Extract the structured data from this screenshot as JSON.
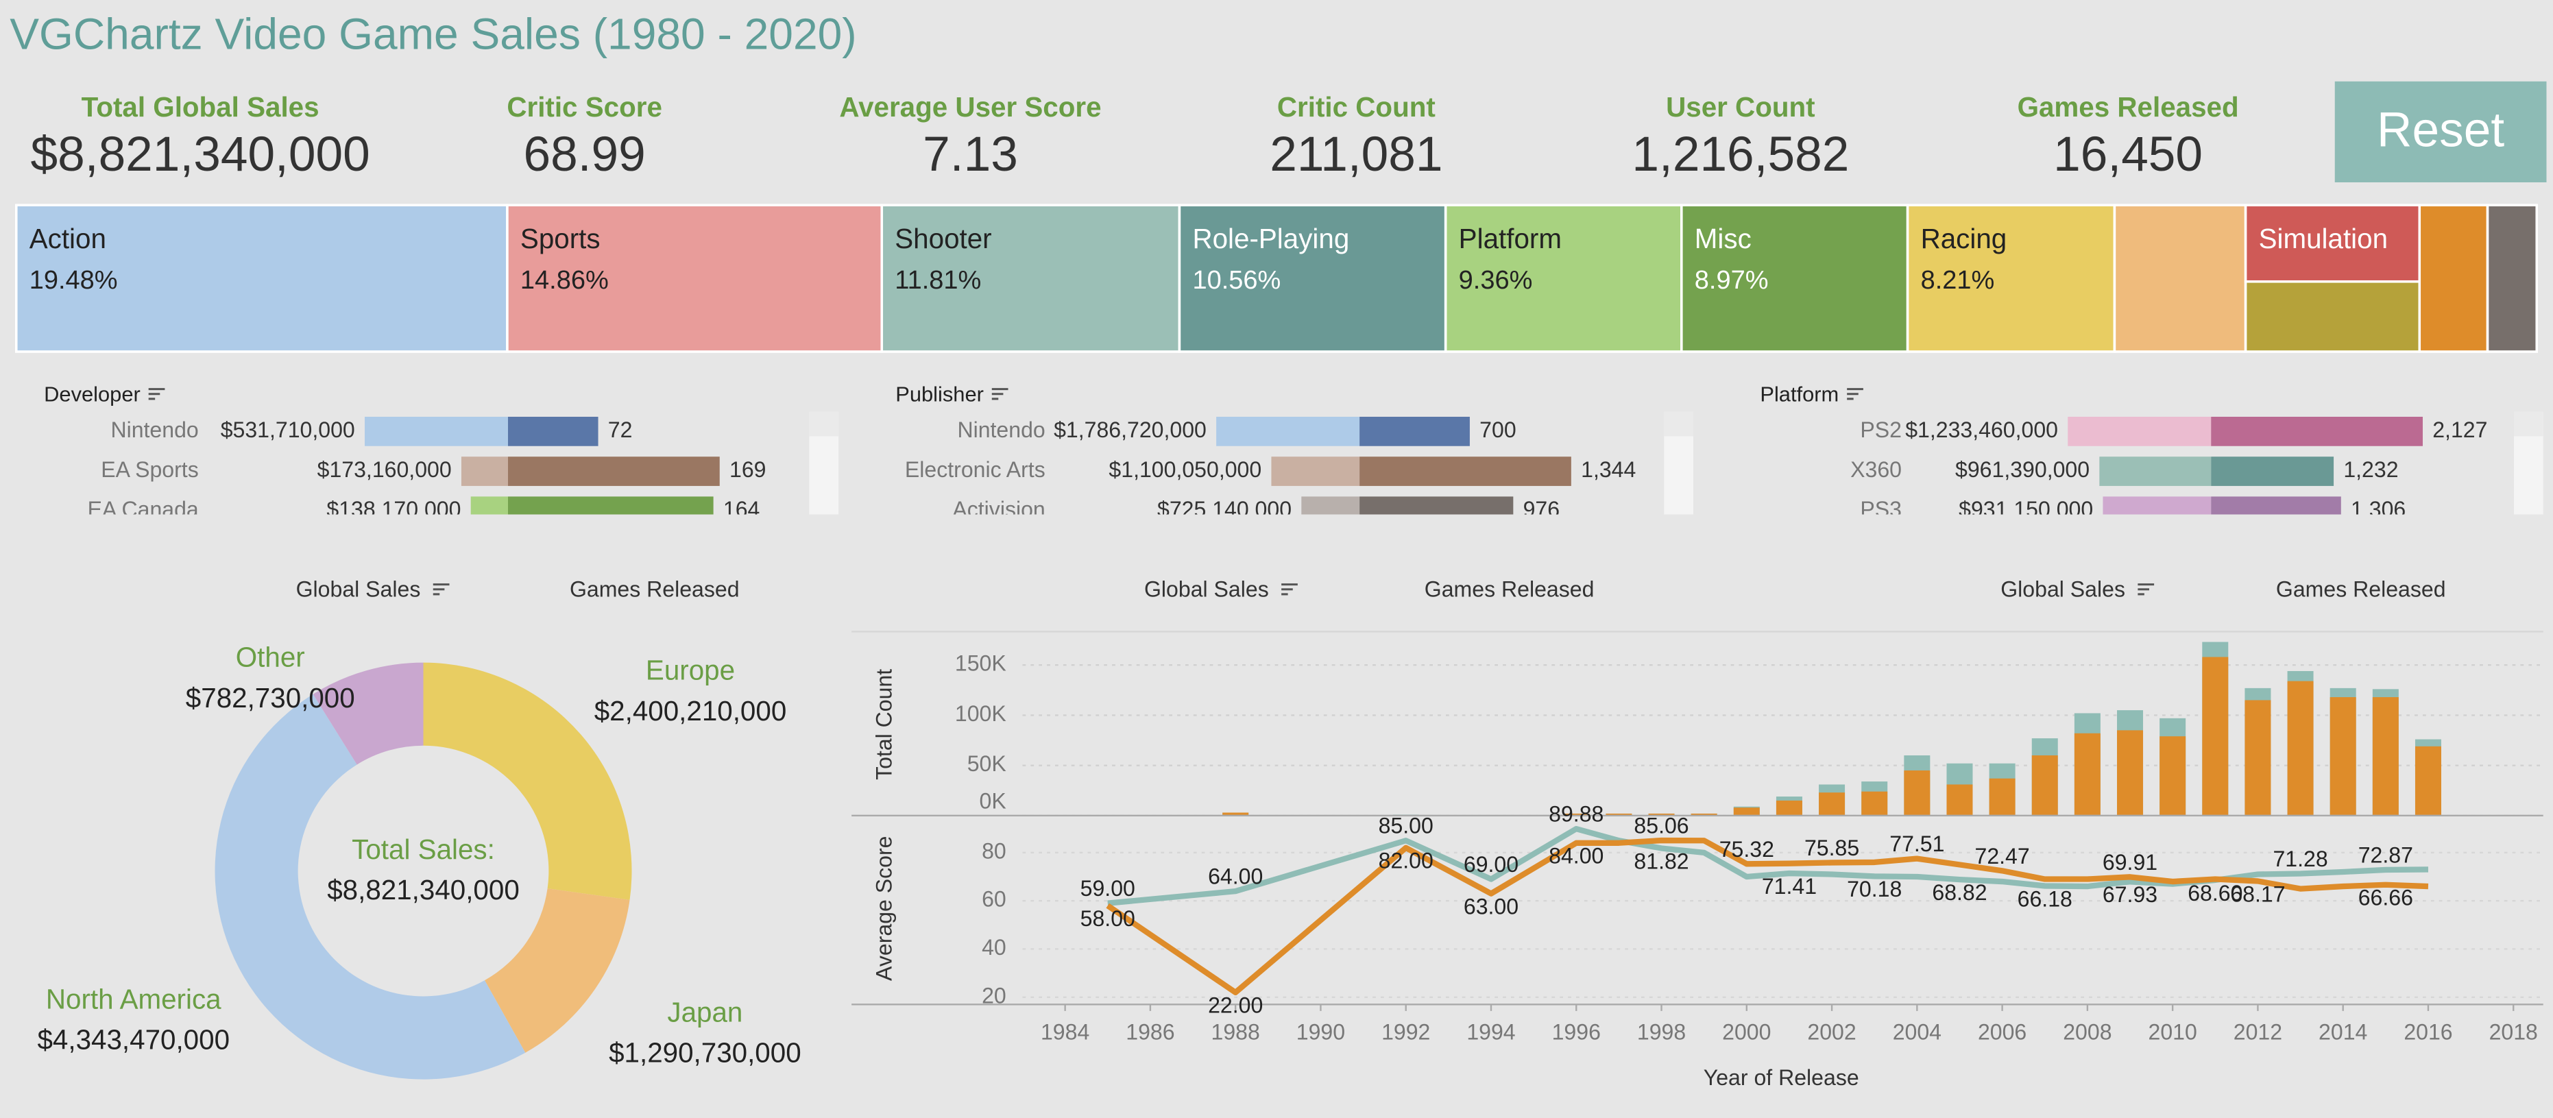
{
  "header": {
    "title": "VGChartz Video Game Sales (1980 - 2020)",
    "reset": "Reset"
  },
  "kpis": [
    {
      "label": "Total Global Sales",
      "value": "$8,821,340,000"
    },
    {
      "label": "Critic Score",
      "value": "68.99"
    },
    {
      "label": "Average User Score",
      "value": "7.13"
    },
    {
      "label": "Critic Count",
      "value": "211,081"
    },
    {
      "label": "User Count",
      "value": "1,216,582"
    },
    {
      "label": "Games Released",
      "value": "16,450"
    }
  ],
  "chart_data": [
    {
      "type": "treemap",
      "categories": [
        "Action",
        "Sports",
        "Shooter",
        "Role-Playing",
        "Platform",
        "Misc",
        "Racing",
        null,
        "Simulation",
        null,
        null,
        null
      ],
      "values": [
        19.48,
        14.86,
        11.81,
        10.56,
        9.36,
        8.97,
        8.21,
        5.2,
        3.6,
        3.3,
        2.7,
        1.95
      ],
      "value_labels": [
        "19.48%",
        "14.86%",
        "11.81%",
        "10.56%",
        "9.36%",
        "8.97%",
        "8.21%",
        null,
        null,
        null,
        null,
        null
      ],
      "colors": [
        "#aecbe8",
        "#e89c9a",
        "#9bbfb6",
        "#6a9995",
        "#a8d280",
        "#74a24e",
        "#e8cd62",
        "#efbb7c",
        "#cf5a57",
        "#b5a23a",
        "#de8c2a",
        "#776f6b"
      ]
    },
    {
      "type": "diverging_bar",
      "title": "Developer",
      "categories": [
        "Nintendo",
        "EA Sports",
        "EA Canada"
      ],
      "series": [
        {
          "values": [
            531710000,
            173160000,
            138170000
          ],
          "value_labels": [
            "$531,710,000",
            "$173,160,000",
            "$138,170,000"
          ],
          "colors": [
            "#aecbe8",
            "#c9b0a2",
            "#a8d280"
          ]
        },
        {
          "values": [
            72,
            169,
            164
          ],
          "value_labels": [
            "72",
            "169",
            "164"
          ],
          "colors": [
            "#5a77a8",
            "#9a7762",
            "#74a24e"
          ]
        }
      ]
    },
    {
      "type": "diverging_bar",
      "title": "Publisher",
      "categories": [
        "Nintendo",
        "Electronic Arts",
        "Activision"
      ],
      "series": [
        {
          "values": [
            1786720000,
            1100050000,
            725140000
          ],
          "value_labels": [
            "$1,786,720,000",
            "$1,100,050,000",
            "$725,140,000"
          ],
          "colors": [
            "#aecbe8",
            "#c9b0a2",
            "#b8b0ac"
          ]
        },
        {
          "values": [
            700,
            1344,
            976
          ],
          "value_labels": [
            "700",
            "1,344",
            "976"
          ],
          "colors": [
            "#5a77a8",
            "#9a7762",
            "#776f6b"
          ]
        }
      ]
    },
    {
      "type": "diverging_bar",
      "title": "Platform",
      "categories": [
        "PS2",
        "X360",
        "PS3"
      ],
      "series": [
        {
          "values": [
            1233460000,
            961390000,
            931150000
          ],
          "value_labels": [
            "$1,233,460,000",
            "$961,390,000",
            "$931,150,000"
          ],
          "colors": [
            "#ebbcd0",
            "#9bbfb6",
            "#cfa9cf"
          ]
        },
        {
          "values": [
            2127,
            1232,
            1306
          ],
          "value_labels": [
            "2,127",
            "1,232",
            "1,306"
          ],
          "colors": [
            "#bb6a92",
            "#6a9995",
            "#a27ca8"
          ]
        }
      ]
    },
    {
      "type": "pie",
      "toggles": [
        "Global Sales",
        "Games Released"
      ],
      "categories": [
        "Europe",
        "Japan",
        "North America",
        "Other"
      ],
      "values": [
        2400210000,
        1290730000,
        4343470000,
        782730000
      ],
      "value_labels": [
        "$2,400,210,000",
        "$1,290,730,000",
        "$4,343,470,000",
        "$782,730,000"
      ],
      "colors": [
        "#e8cd62",
        "#f0bd7a",
        "#b0cbe8",
        "#c9a7cf"
      ],
      "center_label": "Total Sales:",
      "center_value": "$8,821,340,000"
    },
    {
      "type": "bar",
      "toggles": [
        "Global Sales",
        "Games Released"
      ],
      "ylabel": "Total Count",
      "x": [
        1988,
        1992,
        1996,
        1997,
        1998,
        1999,
        2000,
        2001,
        2002,
        2003,
        2004,
        2005,
        2006,
        2007,
        2008,
        2009,
        2010,
        2011,
        2012,
        2013,
        2014,
        2015,
        2016
      ],
      "series": [
        {
          "color": "#8fbcb5",
          "values": [
            3000,
            1000,
            2000,
            2000,
            2000,
            2000,
            9000,
            19000,
            31000,
            34000,
            60000,
            52000,
            52000,
            77000,
            102000,
            105000,
            97000,
            173000,
            127000,
            144000,
            127000,
            126000,
            76000
          ]
        },
        {
          "color": "#de8c2a",
          "values": [
            3000,
            0,
            2000,
            2000,
            2000,
            2000,
            8000,
            15000,
            23000,
            24000,
            45000,
            31000,
            37000,
            60000,
            82000,
            85000,
            79000,
            158000,
            115000,
            134000,
            118000,
            118000,
            69000
          ]
        }
      ],
      "xlim": [
        1983,
        2018.7
      ],
      "ylim": [
        0,
        180000
      ],
      "yticks": [
        {
          "value": 0,
          "label": "0K"
        },
        {
          "value": 50000,
          "label": "50K"
        },
        {
          "value": 100000,
          "label": "100K"
        },
        {
          "value": 150000,
          "label": "150K"
        }
      ],
      "grid": true
    },
    {
      "type": "line",
      "toggles": [
        "Global Sales",
        "Games Released"
      ],
      "ylabel": "Average Score",
      "xlabel": "Year of Release",
      "x": [
        1985,
        1988,
        1992,
        1994,
        1996,
        1997,
        1998,
        1999,
        2000,
        2001,
        2002,
        2003,
        2004,
        2005,
        2006,
        2007,
        2008,
        2009,
        2010,
        2011,
        2012,
        2013,
        2014,
        2015,
        2016
      ],
      "series": [
        {
          "color": "#8fbcb5",
          "values": [
            59,
            64,
            85,
            69,
            89.88,
            85,
            81.82,
            80,
            70,
            71.41,
            71,
            70.18,
            70,
            68.82,
            68,
            66.18,
            66,
            67.93,
            67,
            68.6,
            71,
            71.28,
            72,
            72.87,
            73
          ],
          "value_labels": [
            "59.00",
            "64.00",
            "85.00",
            "69.00",
            "89.88",
            null,
            "81.82",
            null,
            null,
            "71.41",
            null,
            "70.18",
            null,
            "68.82",
            null,
            "66.18",
            null,
            "67.93",
            null,
            "68.60",
            null,
            "71.28",
            null,
            "72.87",
            null
          ]
        },
        {
          "color": "#de8c2a",
          "values": [
            58,
            22,
            82,
            63,
            84,
            84,
            85.06,
            85,
            75.32,
            75.5,
            75.85,
            76,
            77.51,
            75,
            72.47,
            69,
            69,
            69.91,
            68,
            69,
            68.17,
            65,
            66,
            66.66,
            66
          ],
          "value_labels": [
            "58.00",
            "22.00",
            "82.00",
            "63.00",
            "84.00",
            null,
            "85.06",
            null,
            "75.32",
            null,
            "75.85",
            null,
            "77.51",
            null,
            "72.47",
            null,
            null,
            "69.91",
            null,
            null,
            "68.17",
            null,
            null,
            "66.66",
            null
          ]
        }
      ],
      "xlim": [
        1983,
        2018.7
      ],
      "ylim": [
        17,
        94
      ],
      "xticks": [
        1984,
        1986,
        1988,
        1990,
        1992,
        1994,
        1996,
        1998,
        2000,
        2002,
        2004,
        2006,
        2008,
        2010,
        2012,
        2014,
        2016,
        2018
      ],
      "yticks": [
        20,
        40,
        60,
        80
      ],
      "grid": true
    }
  ]
}
